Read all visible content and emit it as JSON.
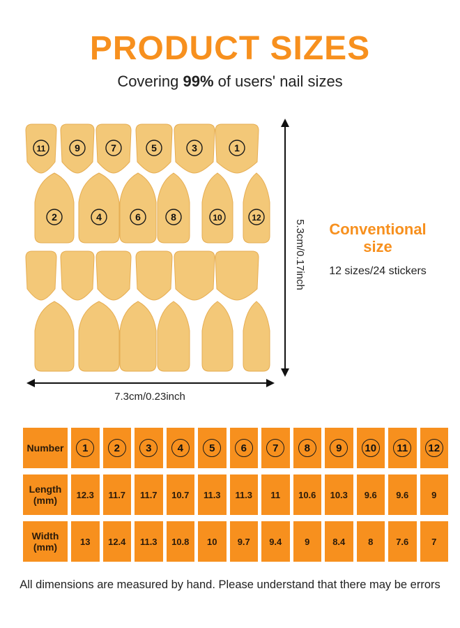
{
  "header": {
    "title": "PRODUCT SIZES",
    "subtitle_prefix": "Covering ",
    "subtitle_bold": "99%",
    "subtitle_suffix": " of users' nail sizes"
  },
  "diagram": {
    "width_label": "7.3cm/0.23inch",
    "height_label": "5.3cm/0.17inch",
    "nail_color": "#f3c878",
    "nail_edge_color": "#e6ad52",
    "top_row_numbers": [
      "11",
      "9",
      "7",
      "5",
      "3",
      "1"
    ],
    "second_row_numbers": [
      "2",
      "4",
      "6",
      "8",
      "10",
      "12"
    ]
  },
  "side": {
    "title_line1": "Conventional",
    "title_line2": "size",
    "subtitle": "12 sizes/24 stickers"
  },
  "table": {
    "accent": "#f7901e",
    "row_labels": {
      "number": "Number",
      "length_l1": "Length",
      "length_l2": "(mm)",
      "width_l1": "Width",
      "width_l2": "(mm)"
    },
    "numbers": [
      "1",
      "2",
      "3",
      "4",
      "5",
      "6",
      "7",
      "8",
      "9",
      "10",
      "11",
      "12"
    ],
    "length": [
      "12.3",
      "11.7",
      "11.7",
      "10.7",
      "11.3",
      "11.3",
      "11",
      "10.6",
      "10.3",
      "9.6",
      "9.6",
      "9"
    ],
    "width": [
      "13",
      "12.4",
      "11.3",
      "10.8",
      "10",
      "9.7",
      "9.4",
      "9",
      "8.4",
      "8",
      "7.6",
      "7"
    ]
  },
  "footnote": "All dimensions are measured by hand. Please understand that there may be errors"
}
